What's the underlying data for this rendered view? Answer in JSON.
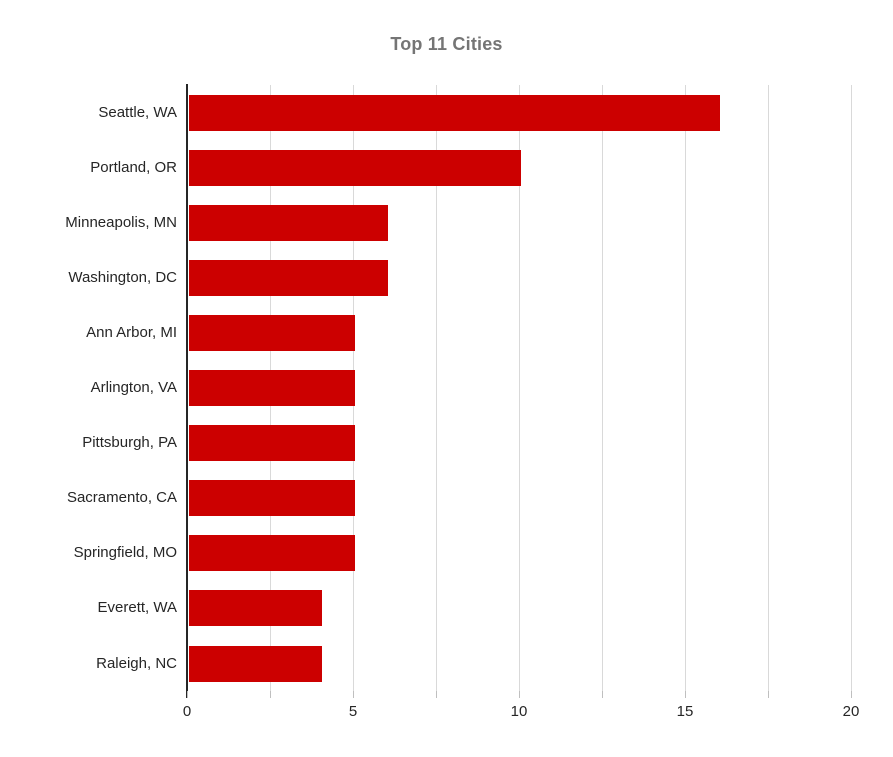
{
  "colors": {
    "bar": "#CC0000",
    "gridline": "#D9D9D9",
    "axis_line": "#262626",
    "tick_mark": "#BFBFBF",
    "title_text": "#757575",
    "label_text": "#262626"
  },
  "chart_data": {
    "type": "bar",
    "orientation": "horizontal",
    "title": "Top 11 Cities",
    "categories": [
      "Seattle, WA",
      "Portland, OR",
      "Minneapolis, MN",
      "Washington, DC",
      "Ann Arbor, MI",
      "Arlington, VA",
      "Pittsburgh, PA",
      "Sacramento, CA",
      "Springfield, MO",
      "Everett, WA",
      "Raleigh, NC"
    ],
    "values": [
      16,
      10,
      6,
      6,
      5,
      5,
      5,
      5,
      5,
      4,
      4
    ],
    "xlabel": "",
    "ylabel": "",
    "xlim": [
      0,
      20
    ],
    "x_tick_labels": [
      "0",
      "5",
      "10",
      "15",
      "20"
    ],
    "x_tick_step": 5,
    "gridline_interval": 2.5,
    "grid": true,
    "legend": false
  }
}
